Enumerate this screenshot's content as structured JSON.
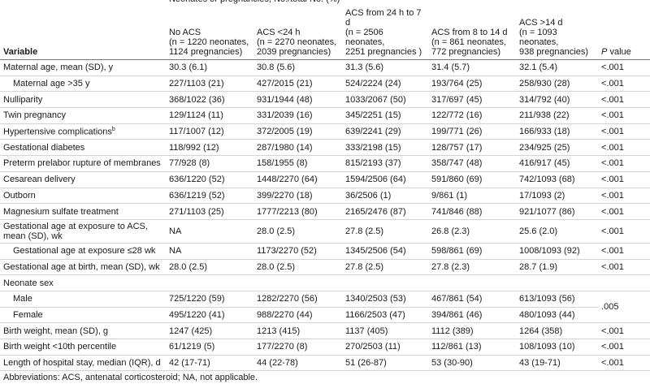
{
  "table": {
    "spanner": "Neonates or pregnancies, No./total No. (%)",
    "columns": [
      "Variable",
      "No ACS\n(n = 1220 neonates,\n1124 pregnancies)",
      "ACS <24 h\n(n = 2270 neonates,\n2039 pregnancies)",
      "ACS from 24 h to 7 d\n(n = 2506 neonates,\n2251 pregnancies )",
      "ACS from 8 to 14 d\n(n = 861 neonates,\n772 pregnancies)",
      "ACS >14 d\n(n = 1093 neonates,\n938 pregnancies)"
    ],
    "p_header": {
      "italic": "P",
      "text": " value"
    },
    "rows": [
      [
        "Maternal age, mean (SD), y",
        "30.3 (6.1)",
        "30.8 (5.6)",
        "31.3 (5.6)",
        "31.4 (5.7)",
        "32.1 (5.4)",
        "<.001"
      ],
      [
        "Maternal age >35 y",
        "227/1103 (21)",
        "427/2015 (21)",
        "524/2224 (24)",
        "193/764 (25)",
        "258/930 (28)",
        "<.001"
      ],
      [
        "Nulliparity",
        "368/1022 (36)",
        "931/1944 (48)",
        "1033/2067 (50)",
        "317/697 (45)",
        "314/792 (40)",
        "<.001"
      ],
      [
        "Twin pregnancy",
        "129/1124 (11)",
        "331/2039 (16)",
        "345/2251 (15)",
        "122/772 (16)",
        "211/938 (22)",
        "<.001"
      ],
      [
        {
          "text": "Hypertensive complications",
          "note": "b"
        },
        "117/1007 (12)",
        "372/2005 (19)",
        "639/2241 (29)",
        "199/771 (26)",
        "166/933 (18)",
        "<.001"
      ],
      [
        "Gestational diabetes",
        "118/992 (12)",
        "287/1980 (14)",
        "333/2198 (15)",
        "128/757 (17)",
        "234/925 (25)",
        "<.001"
      ],
      [
        "Preterm prelabor rupture of membranes",
        "77/928 (8)",
        "158/1955 (8)",
        "815/2193 (37)",
        "358/747 (48)",
        "416/917 (45)",
        "<.001"
      ],
      [
        "Cesarean delivery",
        "636/1220 (52)",
        "1448/2270 (64)",
        "1594/2506 (64)",
        "591/860 (69)",
        "742/1093 (68)",
        "<.001"
      ],
      [
        "Outborn",
        "636/1219 (52)",
        "399/2270 (18)",
        "36/2506 (1)",
        "9/861 (1)",
        "17/1093 (2)",
        "<.001"
      ],
      [
        "Magnesium sulfate treatment",
        "271/1103 (25)",
        "1777/2213 (80)",
        "2165/2476 (87)",
        "741/846 (88)",
        "921/1077 (86)",
        "<.001"
      ],
      [
        "Gestational age at exposure to ACS,\nmean (SD), wk",
        "NA",
        "28.0 (2.5)",
        "27.8 (2.5)",
        "26.8 (2.3)",
        "25.6 (2.0)",
        "<.001"
      ],
      [
        "Gestational age at exposure ≤28 wk",
        "NA",
        "1173/2270 (52)",
        "1345/2506 (54)",
        "598/861 (69)",
        "1008/1093 (92)",
        "<.001"
      ],
      [
        "Gestational age at birth, mean (SD), wk",
        "28.0 (2.5)",
        "28.0 (2.5)",
        "27.8 (2.5)",
        "27.8 (2.3)",
        "28.7 (1.9)",
        "<.001"
      ],
      [
        "Neonate sex"
      ],
      [
        "Male",
        "725/1220 (59)",
        "1282/2270 (56)",
        "1340/2503 (53)",
        "467/861 (54)",
        "613/1093 (56)",
        ".005"
      ],
      [
        "Female",
        "495/1220 (41)",
        "988/2270 (44)",
        "1166/2503 (47)",
        "394/861 (46)",
        "480/1093 (44)"
      ],
      [
        "Birth weight, mean (SD), g",
        "1247 (425)",
        "1213 (415)",
        "1137 (405)",
        "1112 (389)",
        "1264 (358)",
        "<.001"
      ],
      [
        "Birth weight <10th percentile",
        "61/1219 (5)",
        "177/2270 (8)",
        "270/2503 (11)",
        "112/861 (13)",
        "108/1093 (10)",
        "<.001"
      ],
      [
        "Length of hospital stay, median (IQR), d",
        "42 (17-71)",
        "44 (22-78)",
        "51 (26-87)",
        "53 (30-90)",
        "43 (19-71)",
        "<.001"
      ]
    ],
    "footnote": "Abbreviations: ACS, antenatal corticosteroid; NA, not applicable."
  }
}
